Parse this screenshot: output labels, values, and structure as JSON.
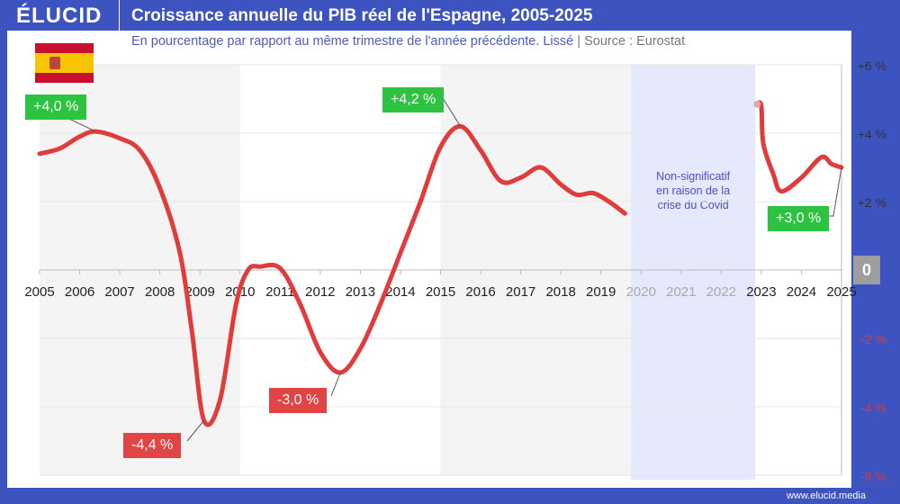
{
  "header": {
    "logo": "ÉLUCID",
    "title": "Croissance annuelle du PIB réel de l'Espagne, 2005-2025"
  },
  "subtitle": {
    "text": "En pourcentage par rapport au même trimestre de l'année précédente. Lissé",
    "separator": "|",
    "source": "Source : Eurostat"
  },
  "footer": {
    "url": "www.elucid.media"
  },
  "colors": {
    "frame": "#3d54c0",
    "line": "#e03c3c",
    "positive_label": "#2dc23f",
    "negative_label": "#e14444",
    "covid_band": "#e6e8fb",
    "shade": "#f4f4f4"
  },
  "flag_icon": "spain-flag",
  "chart_data": {
    "type": "line",
    "title": "Croissance annuelle du PIB réel de l'Espagne, 2005-2025",
    "xlim": [
      2005,
      2025
    ],
    "ylim": [
      -6,
      6
    ],
    "x_ticks": [
      "2005",
      "2006",
      "2007",
      "2008",
      "2009",
      "2010",
      "2011",
      "2012",
      "2013",
      "2014",
      "2015",
      "2016",
      "2017",
      "2018",
      "2019",
      "2020",
      "2021",
      "2022",
      "2023",
      "2024",
      "2025"
    ],
    "y_ticks": [
      {
        "v": 6,
        "t": "+6 %"
      },
      {
        "v": 4,
        "t": "+4 %"
      },
      {
        "v": 2,
        "t": "+2 %"
      },
      {
        "v": 0,
        "t": "0"
      },
      {
        "v": -2,
        "t": "-2 %"
      },
      {
        "v": -4,
        "t": "-4 %"
      },
      {
        "v": -6,
        "t": "-6 %"
      }
    ],
    "y_axis_position": "right",
    "grid": true,
    "series": [
      {
        "segment": "2005-2019",
        "points": [
          [
            2005,
            3.4
          ],
          [
            2005.5,
            3.55
          ],
          [
            2006,
            3.9
          ],
          [
            2006.4,
            4.05
          ],
          [
            2007,
            3.85
          ],
          [
            2007.5,
            3.5
          ],
          [
            2008,
            2.4
          ],
          [
            2008.5,
            0.5
          ],
          [
            2008.8,
            -1.8
          ],
          [
            2009.1,
            -4.4
          ],
          [
            2009.5,
            -3.8
          ],
          [
            2009.9,
            -1.0
          ],
          [
            2010.2,
            0.0
          ],
          [
            2010.5,
            0.1
          ],
          [
            2011,
            0.05
          ],
          [
            2011.5,
            -1.0
          ],
          [
            2012,
            -2.4
          ],
          [
            2012.5,
            -3.0
          ],
          [
            2013,
            -2.3
          ],
          [
            2013.5,
            -1.0
          ],
          [
            2014,
            0.5
          ],
          [
            2014.5,
            2.0
          ],
          [
            2015,
            3.6
          ],
          [
            2015.5,
            4.2
          ],
          [
            2016,
            3.5
          ],
          [
            2016.5,
            2.6
          ],
          [
            2017,
            2.7
          ],
          [
            2017.5,
            3.0
          ],
          [
            2018,
            2.5
          ],
          [
            2018.4,
            2.2
          ],
          [
            2018.8,
            2.25
          ],
          [
            2019.2,
            2.0
          ],
          [
            2019.6,
            1.65
          ]
        ]
      },
      {
        "segment": "2023-2025",
        "points": [
          [
            2022.9,
            4.85
          ],
          [
            2023.0,
            4.8
          ],
          [
            2023.05,
            3.7
          ],
          [
            2023.3,
            2.8
          ],
          [
            2023.5,
            2.3
          ],
          [
            2024,
            2.7
          ],
          [
            2024.5,
            3.3
          ],
          [
            2024.75,
            3.1
          ],
          [
            2025,
            3.0
          ]
        ]
      }
    ],
    "shaded_periods": [
      [
        2005,
        2010
      ],
      [
        2015,
        2019.75
      ]
    ],
    "covid_band": {
      "range": [
        2019.75,
        2022.85
      ],
      "text": [
        "Non-significatif",
        "en raison de la",
        "crise du Covid"
      ]
    },
    "annotations": [
      {
        "text": "+4,0 %",
        "x": 2006.4,
        "y": 4.05,
        "kind": "positive"
      },
      {
        "text": "-4,4 %",
        "x": 2009.1,
        "y": -4.4,
        "kind": "negative"
      },
      {
        "text": "-3,0 %",
        "x": 2012.5,
        "y": -3.0,
        "kind": "negative"
      },
      {
        "text": "+4,2 %",
        "x": 2015.5,
        "y": 4.2,
        "kind": "positive"
      },
      {
        "text": "+3,0 %",
        "x": 2025,
        "y": 3.0,
        "kind": "positive"
      }
    ]
  }
}
